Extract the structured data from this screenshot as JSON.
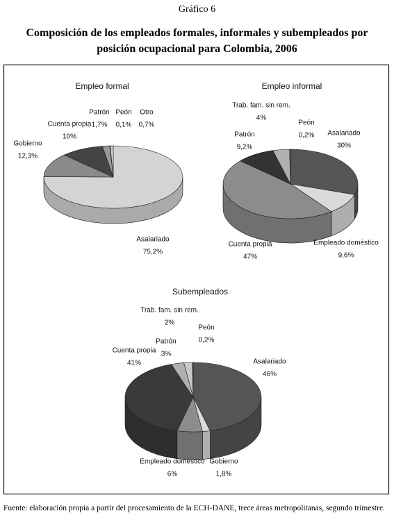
{
  "header": "Gráfico 6",
  "title": "Composición de los empleados formales, informales y subempleados por posición ocupacional para Colombia, 2006",
  "source": "Fuente: elaboración propia a partir del procesamiento de la ECH-DANE, trece áreas metropolitanas, segundo trimestre.",
  "chart_data": [
    {
      "type": "pie",
      "title": "Empleo formal",
      "categories": [
        "Asalariado",
        "Gobierno",
        "Cuenta propia",
        "Patrón",
        "Peón",
        "Otro"
      ],
      "values": [
        75.2,
        12.3,
        10,
        1.7,
        0.1,
        0.7
      ],
      "value_labels": [
        "75,2%",
        "12,3%",
        "10%",
        "1,7%",
        "0,1%",
        "0,7%"
      ],
      "colors": [
        "#d4d4d4",
        "#8a8a8a",
        "#444444",
        "#9a9a9a",
        "#555555",
        "#cfcfcf"
      ]
    },
    {
      "type": "pie",
      "title": "Empleo informal",
      "categories": [
        "Asalariado",
        "Empleado doméstico",
        "Cuenta propia",
        "Patrón",
        "Trab. fam. sin rem.",
        "Peón"
      ],
      "values": [
        30,
        9.6,
        47,
        9.2,
        4,
        0.2
      ],
      "value_labels": [
        "30%",
        "9,6%",
        "47%",
        "9,2%",
        "4%",
        "0,2%"
      ],
      "colors": [
        "#555555",
        "#dadada",
        "#8c8c8c",
        "#333333",
        "#b0b0b0",
        "#666666"
      ]
    },
    {
      "type": "pie",
      "title": "Subempleados",
      "categories": [
        "Asalariado",
        "Gobierno",
        "Empleado doméstico",
        "Cuenta propia",
        "Patrón",
        "Trab. fam. sin rem.",
        "Peón"
      ],
      "values": [
        46,
        1.8,
        6,
        41,
        3,
        2,
        0.2
      ],
      "value_labels": [
        "46%",
        "1,8%",
        "6%",
        "41%",
        "3%",
        "2%",
        "0,2%"
      ],
      "colors": [
        "#555555",
        "#dcdcdc",
        "#8c8c8c",
        "#3a3a3a",
        "#b0b0b0",
        "#c8c8c8",
        "#666666"
      ]
    }
  ]
}
